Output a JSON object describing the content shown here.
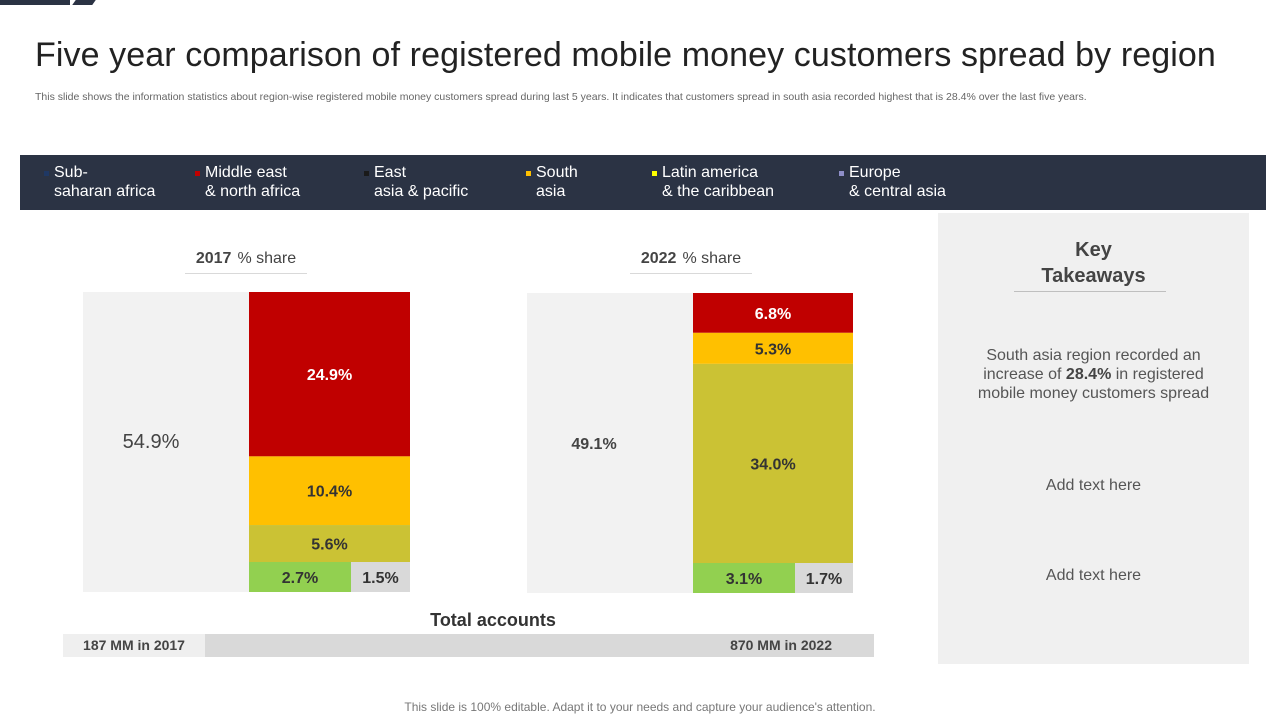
{
  "slide": {
    "title": "Five year comparison of registered mobile money customers spread by region",
    "subtitle": "This slide shows the information statistics about region-wise registered mobile money customers spread during last 5 years. It indicates that customers spread in south asia recorded highest that is 28.4% over the last five years.",
    "footer": "This slide is 100% editable. Adapt it to your needs and capture your audience's attention."
  },
  "legend": [
    {
      "line1": "Sub-",
      "line2": "saharan africa",
      "color": "#1f3864"
    },
    {
      "line1": "Middle east",
      "line2": "& north africa",
      "color": "#c00000"
    },
    {
      "line1": "East",
      "line2": "asia & pacific",
      "color": "#1a1a1a"
    },
    {
      "line1": "South",
      "line2": "asia",
      "color": "#ffc000"
    },
    {
      "line1": "Latin america",
      "line2": "& the caribbean",
      "color": "#ffff00"
    },
    {
      "line1": "Europe",
      "line2": "& central asia",
      "color": "#8e8ec8"
    }
  ],
  "panels": [
    {
      "year": "2017",
      "label": "% share"
    },
    {
      "year": "2022",
      "label": "% share"
    }
  ],
  "chart_data": [
    {
      "type": "bar",
      "title": "2017 % share",
      "unit": "%",
      "segments": [
        {
          "region": "Sub-saharan africa",
          "value": 54.9,
          "label": "54.9%",
          "color": "#f2f2f2"
        },
        {
          "region": "Middle east & north africa",
          "value": 24.9,
          "label": "24.9%",
          "color": "#c00000"
        },
        {
          "region": "South asia",
          "value": 10.4,
          "label": "10.4%",
          "color": "#ffc000"
        },
        {
          "region": "Latin america & the caribbean",
          "value": 5.6,
          "label": "5.6%",
          "color": "#cbc234"
        },
        {
          "region": "East asia & pacific",
          "value": 2.7,
          "label": "2.7%",
          "color": "#92d050"
        },
        {
          "region": "Europe & central asia",
          "value": 1.5,
          "label": "1.5%",
          "color": "#d9d9d9"
        }
      ]
    },
    {
      "type": "bar",
      "title": "2022 % share",
      "unit": "%",
      "segments": [
        {
          "region": "Sub-saharan africa",
          "value": 49.1,
          "label": "49.1%",
          "color": "#f2f2f2"
        },
        {
          "region": "Middle east & north africa",
          "value": 6.8,
          "label": "6.8%",
          "color": "#c00000"
        },
        {
          "region": "South asia",
          "value": 5.3,
          "label": "5.3%",
          "color": "#ffc000"
        },
        {
          "region": "Latin america & the caribbean",
          "value": 34.0,
          "label": "34.0%",
          "color": "#cbc234"
        },
        {
          "region": "East asia & pacific",
          "value": 3.1,
          "label": "3.1%",
          "color": "#92d050"
        },
        {
          "region": "Europe & central asia",
          "value": 1.7,
          "label": "1.7%",
          "color": "#d9d9d9"
        }
      ]
    }
  ],
  "totals": {
    "title": "Total accounts",
    "left": "187 MM in 2017",
    "right": "870 MM in 2022",
    "left_value_mm": 187,
    "right_value_mm": 870
  },
  "takeaways": {
    "title_line1": "Key",
    "title_line2": "Takeaways",
    "point1_before": "South asia region recorded an increase of ",
    "point1_bold": "28.4%",
    "point1_after": " in registered mobile money customers spread",
    "point2": "Add text here",
    "point3": "Add text here"
  }
}
